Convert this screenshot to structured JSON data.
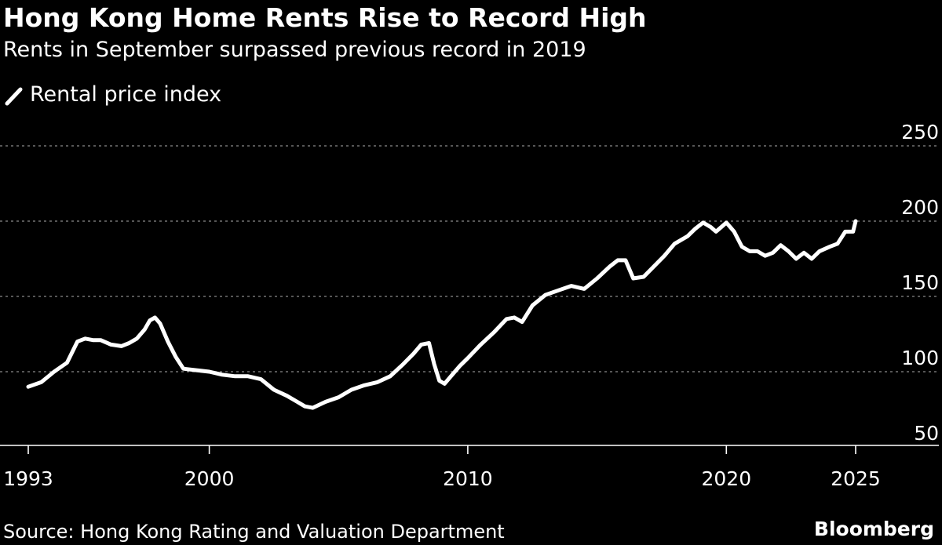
{
  "colors": {
    "background": "#000000",
    "line": "#ffffff",
    "text": "#ffffff",
    "grid": "#8a8a8a"
  },
  "brand": "Bloomberg",
  "source": "Source: Hong Kong Rating and Valuation Department",
  "chart_data": {
    "type": "line",
    "title": "Hong Kong Home Rents Rise to Record High",
    "subtitle": "Rents in September surpassed previous record in 2019",
    "legend": [
      {
        "name": "Rental price index",
        "icon": "line-swatch-icon"
      }
    ],
    "xlabel": "",
    "ylabel": "",
    "xlim": [
      1993,
      2025.3
    ],
    "ylim": [
      40,
      250
    ],
    "x_ticks": [
      1993,
      2000,
      2010,
      2020,
      2025
    ],
    "x_tick_labels": [
      "1993",
      "2000",
      "2010",
      "2020",
      "2025"
    ],
    "y_ticks": [
      50,
      100,
      150,
      200,
      250
    ],
    "y_tick_labels": [
      "50",
      "100",
      "150",
      "200",
      "250"
    ],
    "grid": true,
    "y_axis_position": "right",
    "series": [
      {
        "name": "Rental price index",
        "x": [
          1993.0,
          1993.5,
          1994.0,
          1994.5,
          1994.9,
          1995.2,
          1995.5,
          1995.8,
          1996.2,
          1996.6,
          1996.9,
          1997.2,
          1997.5,
          1997.7,
          1997.9,
          1998.1,
          1998.4,
          1998.7,
          1999.0,
          1999.5,
          2000.0,
          2000.5,
          2001.0,
          2001.5,
          2002.0,
          2002.5,
          2003.0,
          2003.4,
          2003.7,
          2004.0,
          2004.5,
          2005.0,
          2005.5,
          2006.0,
          2006.5,
          2007.0,
          2007.5,
          2007.9,
          2008.2,
          2008.5,
          2008.7,
          2008.9,
          2009.1,
          2009.4,
          2009.7,
          2010.0,
          2010.5,
          2011.0,
          2011.5,
          2011.8,
          2012.1,
          2012.5,
          2013.0,
          2013.5,
          2014.0,
          2014.5,
          2015.0,
          2015.5,
          2015.8,
          2016.1,
          2016.4,
          2016.8,
          2017.2,
          2017.6,
          2018.0,
          2018.5,
          2018.8,
          2019.1,
          2019.4,
          2019.6,
          2019.8,
          2020.0,
          2020.3,
          2020.6,
          2020.9,
          2021.2,
          2021.5,
          2021.8,
          2022.1,
          2022.4,
          2022.7,
          2023.0,
          2023.3,
          2023.6,
          2024.0,
          2024.3,
          2024.6,
          2024.9,
          2025.0
        ],
        "values": [
          90,
          93,
          100,
          106,
          120,
          122,
          121,
          121,
          118,
          117,
          119,
          122,
          128,
          134,
          136,
          132,
          120,
          110,
          102,
          101,
          100,
          98,
          97,
          97,
          95,
          88,
          84,
          80,
          77,
          76,
          80,
          83,
          88,
          91,
          93,
          97,
          105,
          112,
          118,
          119,
          105,
          94,
          92,
          98,
          104,
          109,
          118,
          126,
          135,
          136,
          133,
          144,
          151,
          154,
          157,
          155,
          162,
          170,
          174,
          174,
          162,
          163,
          170,
          177,
          185,
          190,
          195,
          199,
          196,
          193,
          196,
          199,
          193,
          183,
          180,
          180,
          177,
          179,
          184,
          180,
          175,
          179,
          175,
          180,
          183,
          185,
          193,
          193,
          200
        ]
      }
    ]
  }
}
